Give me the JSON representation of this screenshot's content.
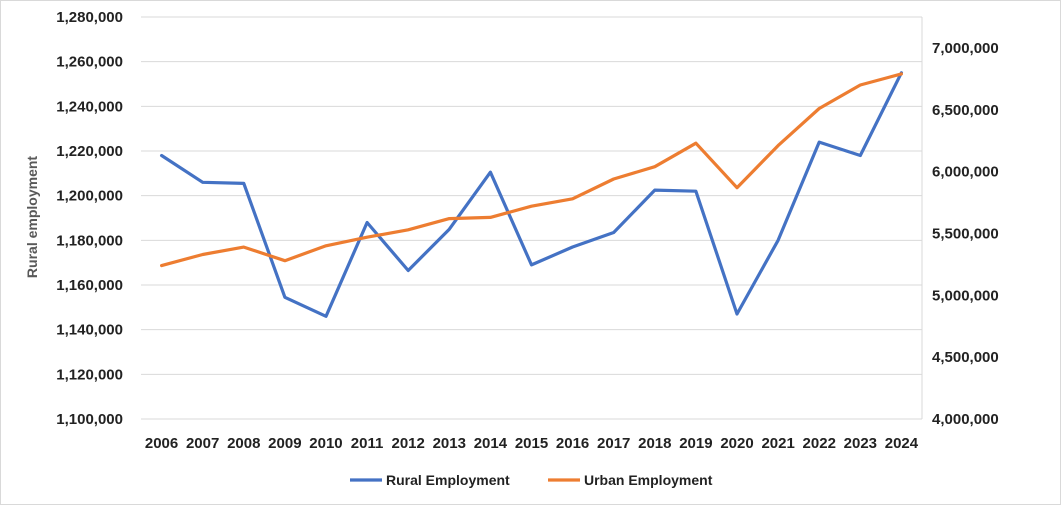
{
  "chart_data": {
    "type": "line",
    "title": "",
    "xlabel": "",
    "ylabel": "Rural employment",
    "y2label": "",
    "categories": [
      "2006",
      "2007",
      "2008",
      "2009",
      "2010",
      "2011",
      "2012",
      "2013",
      "2014",
      "2015",
      "2016",
      "2017",
      "2018",
      "2019",
      "2020",
      "2021",
      "2022",
      "2023",
      "2024"
    ],
    "ylim": [
      1100000,
      1280000
    ],
    "y2lim": [
      4000000,
      7250000
    ],
    "yticks": [
      "1,100,000",
      "1,120,000",
      "1,140,000",
      "1,160,000",
      "1,180,000",
      "1,200,000",
      "1,220,000",
      "1,240,000",
      "1,260,000",
      "1,280,000"
    ],
    "y2ticks": [
      "4,000,000",
      "4,500,000",
      "5,000,000",
      "5,500,000",
      "6,000,000",
      "6,500,000",
      "7,000,000"
    ],
    "grid": true,
    "legend_position": "bottom",
    "series": [
      {
        "name": "Rural Employment",
        "axis": "left",
        "color": "#4472C4",
        "values": [
          1218000,
          1206000,
          1205500,
          1154500,
          1146000,
          1188000,
          1166500,
          1185000,
          1210500,
          1169000,
          1177000,
          1183500,
          1202500,
          1202000,
          1147000,
          1180000,
          1224000,
          1218000,
          1255000
        ]
      },
      {
        "name": "Urban Employment",
        "axis": "right",
        "color": "#ED7D31",
        "values": [
          5240000,
          5330000,
          5390000,
          5280000,
          5400000,
          5470000,
          5530000,
          5620000,
          5630000,
          5720000,
          5780000,
          5940000,
          6040000,
          6230000,
          5870000,
          6210000,
          6510000,
          6700000,
          6790000
        ]
      }
    ]
  }
}
